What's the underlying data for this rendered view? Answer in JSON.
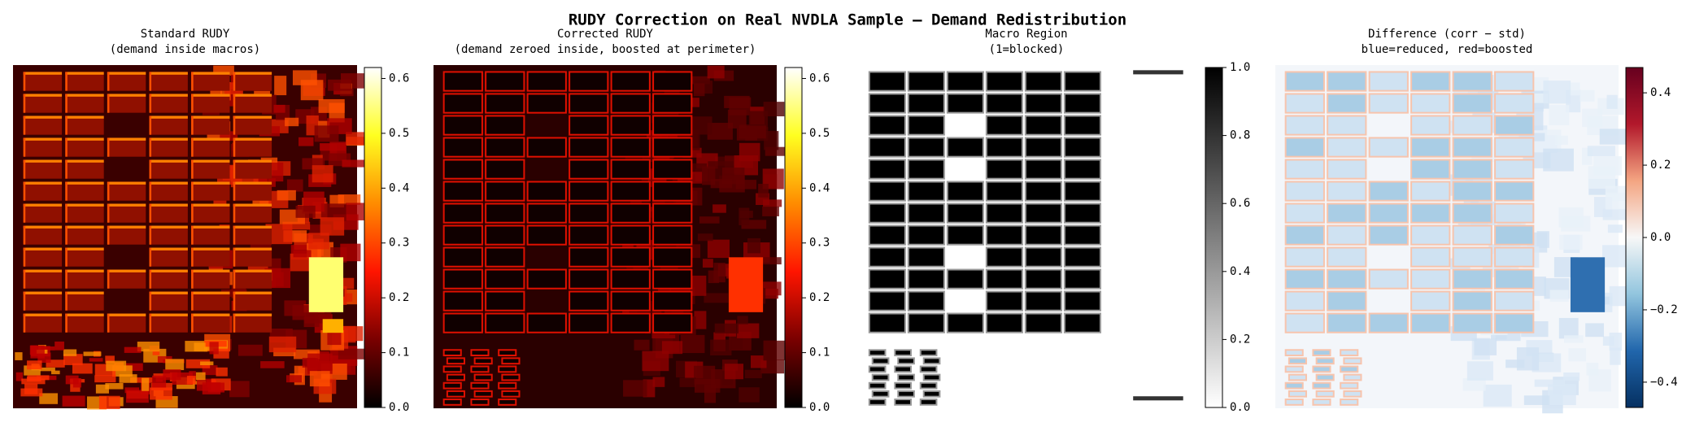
{
  "title": "RUDY Correction on Real NVDLA Sample — Demand Redistribution",
  "chart_data": [
    {
      "type": "heatmap",
      "title": [
        "Standard RUDY",
        "(demand inside macros)"
      ],
      "cmap": "hot",
      "clim": [
        0,
        0.62
      ],
      "cticks": [
        {
          "value": 0,
          "label": "0.0"
        },
        0.1,
        0.2,
        0.3,
        0.4,
        0.5,
        0.6
      ]
    },
    {
      "type": "heatmap",
      "title": [
        "Corrected RUDY",
        "(demand zeroed inside, boosted at perimeter)"
      ],
      "cmap": "hot",
      "clim": [
        0,
        0.62
      ],
      "cticks": [
        {
          "value": 0,
          "label": "0.0"
        },
        0.1,
        0.2,
        0.3,
        0.4,
        0.5,
        0.6
      ]
    },
    {
      "type": "heatmap",
      "title": [
        "Macro Region",
        "(1=blocked)"
      ],
      "cmap": "gray_r",
      "clim": [
        0,
        1
      ],
      "cticks": [
        {
          "value": 0,
          "label": "0.0"
        },
        0.2,
        0.4,
        0.6,
        0.8,
        {
          "value": 1,
          "label": "1.0"
        }
      ]
    },
    {
      "type": "heatmap",
      "title": [
        "Difference (corr − std)",
        "blue=reduced, red=boosted"
      ],
      "cmap": "RdBu_r",
      "clim": [
        -0.47,
        0.47
      ],
      "cticks": [
        {
          "value": -0.4,
          "label": "−0.4"
        },
        {
          "value": -0.2,
          "label": "−0.2"
        },
        {
          "value": 0,
          "label": "0.0"
        },
        0.2,
        0.4
      ]
    }
  ]
}
